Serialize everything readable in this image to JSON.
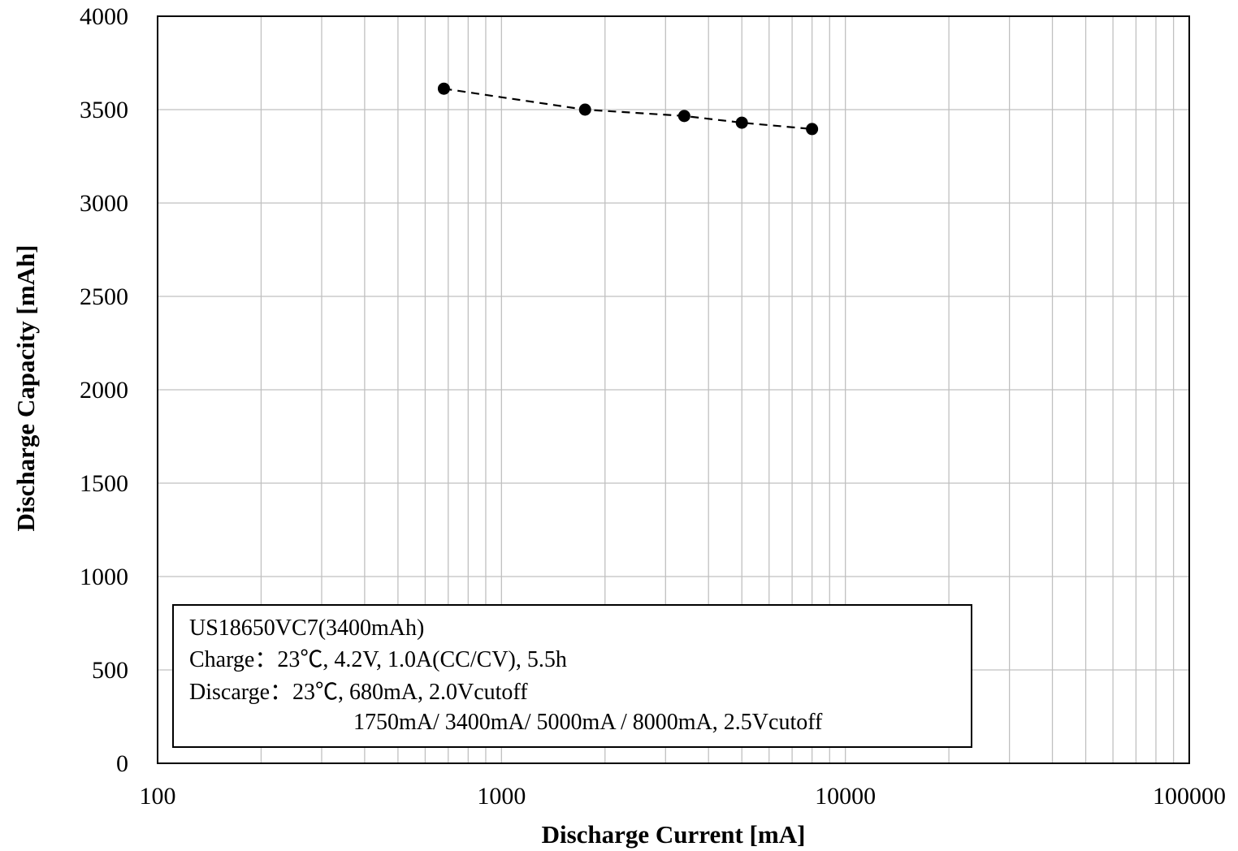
{
  "chart_data": {
    "type": "scatter",
    "xlabel": "Discharge Current [mA]",
    "ylabel": "Discharge Capacity [mAh]",
    "xscale": "log",
    "xlim": [
      100,
      100000
    ],
    "ylim": [
      0,
      4000
    ],
    "x_ticks": [
      "100",
      "1000",
      "10000",
      "100000"
    ],
    "y_ticks": [
      "0",
      "500",
      "1000",
      "1500",
      "2000",
      "2500",
      "3000",
      "3500",
      "4000"
    ],
    "grid": true,
    "line_style": "dashed",
    "series": [
      {
        "x": [
          680,
          1750,
          3400,
          5000,
          8000
        ],
        "y": [
          3612,
          3500,
          3466,
          3430,
          3396
        ]
      }
    ],
    "annotation": {
      "lines": [
        "US18650VC7(3400mAh)",
        "Charge：23℃, 4.2V, 1.0A(CC/CV), 5.5h",
        "Discarge：23℃, 680mA, 2.0Vcutoff",
        "1750mA/ 3400mA/ 5000mA / 8000mA, 2.5Vcutoff"
      ]
    },
    "colors": {
      "grid": "#c0c0c0",
      "axes": "#000000",
      "points": "#000000"
    }
  }
}
